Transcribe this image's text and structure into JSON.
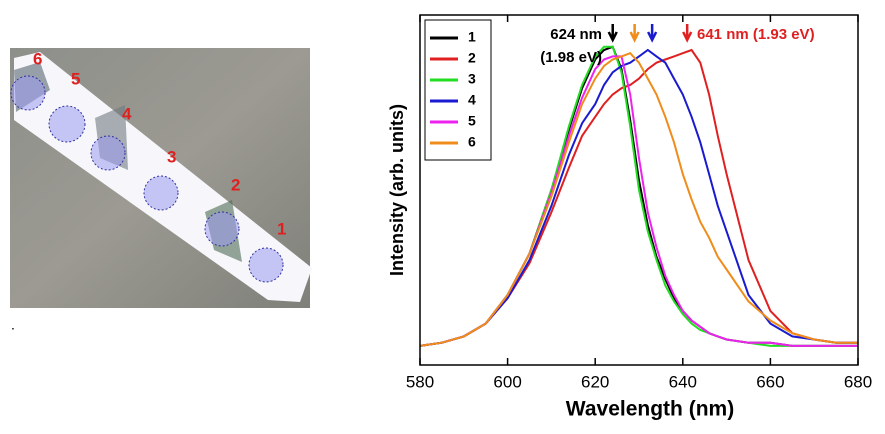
{
  "image_labels": [
    "6",
    "5",
    "4",
    "3",
    "2",
    "1"
  ],
  "footnote": ".",
  "chart_data": {
    "type": "line",
    "xlabel": "Wavelength (nm)",
    "ylabel": "Intensity (arb. units)",
    "xlim": [
      580,
      680
    ],
    "xticks": [
      580,
      600,
      620,
      640,
      660,
      680
    ],
    "ylim": [
      0,
      1.1
    ],
    "x": [
      580,
      585,
      590,
      595,
      600,
      605,
      610,
      614,
      617,
      620,
      622,
      624,
      626,
      628,
      630,
      632,
      634,
      636,
      638,
      640,
      642,
      644,
      646,
      648,
      650,
      655,
      660,
      665,
      670,
      675,
      680
    ],
    "series": [
      {
        "name": "1",
        "color": "#000000",
        "values": [
          0.06,
          0.07,
          0.09,
          0.13,
          0.22,
          0.35,
          0.55,
          0.74,
          0.87,
          0.96,
          0.99,
          1.0,
          0.93,
          0.77,
          0.58,
          0.44,
          0.34,
          0.27,
          0.21,
          0.17,
          0.14,
          0.12,
          0.1,
          0.09,
          0.08,
          0.07,
          0.07,
          0.06,
          0.06,
          0.06,
          0.06
        ]
      },
      {
        "name": "2",
        "color": "#e02020",
        "values": [
          0.06,
          0.07,
          0.09,
          0.13,
          0.21,
          0.32,
          0.48,
          0.62,
          0.72,
          0.78,
          0.82,
          0.85,
          0.87,
          0.88,
          0.9,
          0.93,
          0.95,
          0.96,
          0.97,
          0.98,
          0.99,
          0.95,
          0.85,
          0.72,
          0.6,
          0.33,
          0.17,
          0.1,
          0.08,
          0.07,
          0.07
        ]
      },
      {
        "name": "3",
        "color": "#22dd22",
        "values": [
          0.06,
          0.07,
          0.09,
          0.13,
          0.22,
          0.35,
          0.55,
          0.75,
          0.88,
          0.97,
          1.0,
          1.0,
          0.92,
          0.75,
          0.55,
          0.42,
          0.33,
          0.25,
          0.2,
          0.16,
          0.13,
          0.11,
          0.1,
          0.09,
          0.08,
          0.07,
          0.06,
          0.06,
          0.06,
          0.06,
          0.06
        ]
      },
      {
        "name": "4",
        "color": "#1a1ad0",
        "values": [
          0.06,
          0.07,
          0.09,
          0.13,
          0.21,
          0.33,
          0.5,
          0.66,
          0.76,
          0.82,
          0.88,
          0.92,
          0.94,
          0.95,
          0.97,
          0.99,
          0.97,
          0.95,
          0.9,
          0.85,
          0.78,
          0.7,
          0.6,
          0.5,
          0.42,
          0.22,
          0.13,
          0.09,
          0.08,
          0.07,
          0.07
        ]
      },
      {
        "name": "5",
        "color": "#ee22ee",
        "values": [
          0.06,
          0.07,
          0.09,
          0.13,
          0.22,
          0.35,
          0.54,
          0.72,
          0.84,
          0.93,
          0.96,
          0.97,
          0.97,
          0.85,
          0.65,
          0.48,
          0.37,
          0.28,
          0.22,
          0.17,
          0.14,
          0.12,
          0.1,
          0.09,
          0.08,
          0.07,
          0.07,
          0.06,
          0.06,
          0.06,
          0.06
        ]
      },
      {
        "name": "6",
        "color": "#f08c1a",
        "values": [
          0.06,
          0.07,
          0.09,
          0.13,
          0.22,
          0.35,
          0.53,
          0.7,
          0.82,
          0.9,
          0.94,
          0.96,
          0.97,
          0.98,
          0.95,
          0.9,
          0.85,
          0.78,
          0.7,
          0.6,
          0.52,
          0.45,
          0.4,
          0.34,
          0.3,
          0.2,
          0.14,
          0.1,
          0.08,
          0.07,
          0.07
        ]
      }
    ],
    "arrows": [
      {
        "x": 624,
        "color": "#000000"
      },
      {
        "x": 629,
        "color": "#f08c1a"
      },
      {
        "x": 633,
        "color": "#1a1ad0"
      },
      {
        "x": 641,
        "color": "#e02020"
      }
    ],
    "annotations": [
      {
        "text": "624 nm",
        "color": "#000000"
      },
      {
        "text": "(1.98 eV)",
        "color": "#000000"
      },
      {
        "text": "641 nm (1.93 eV)",
        "color": "#e02020"
      }
    ]
  }
}
